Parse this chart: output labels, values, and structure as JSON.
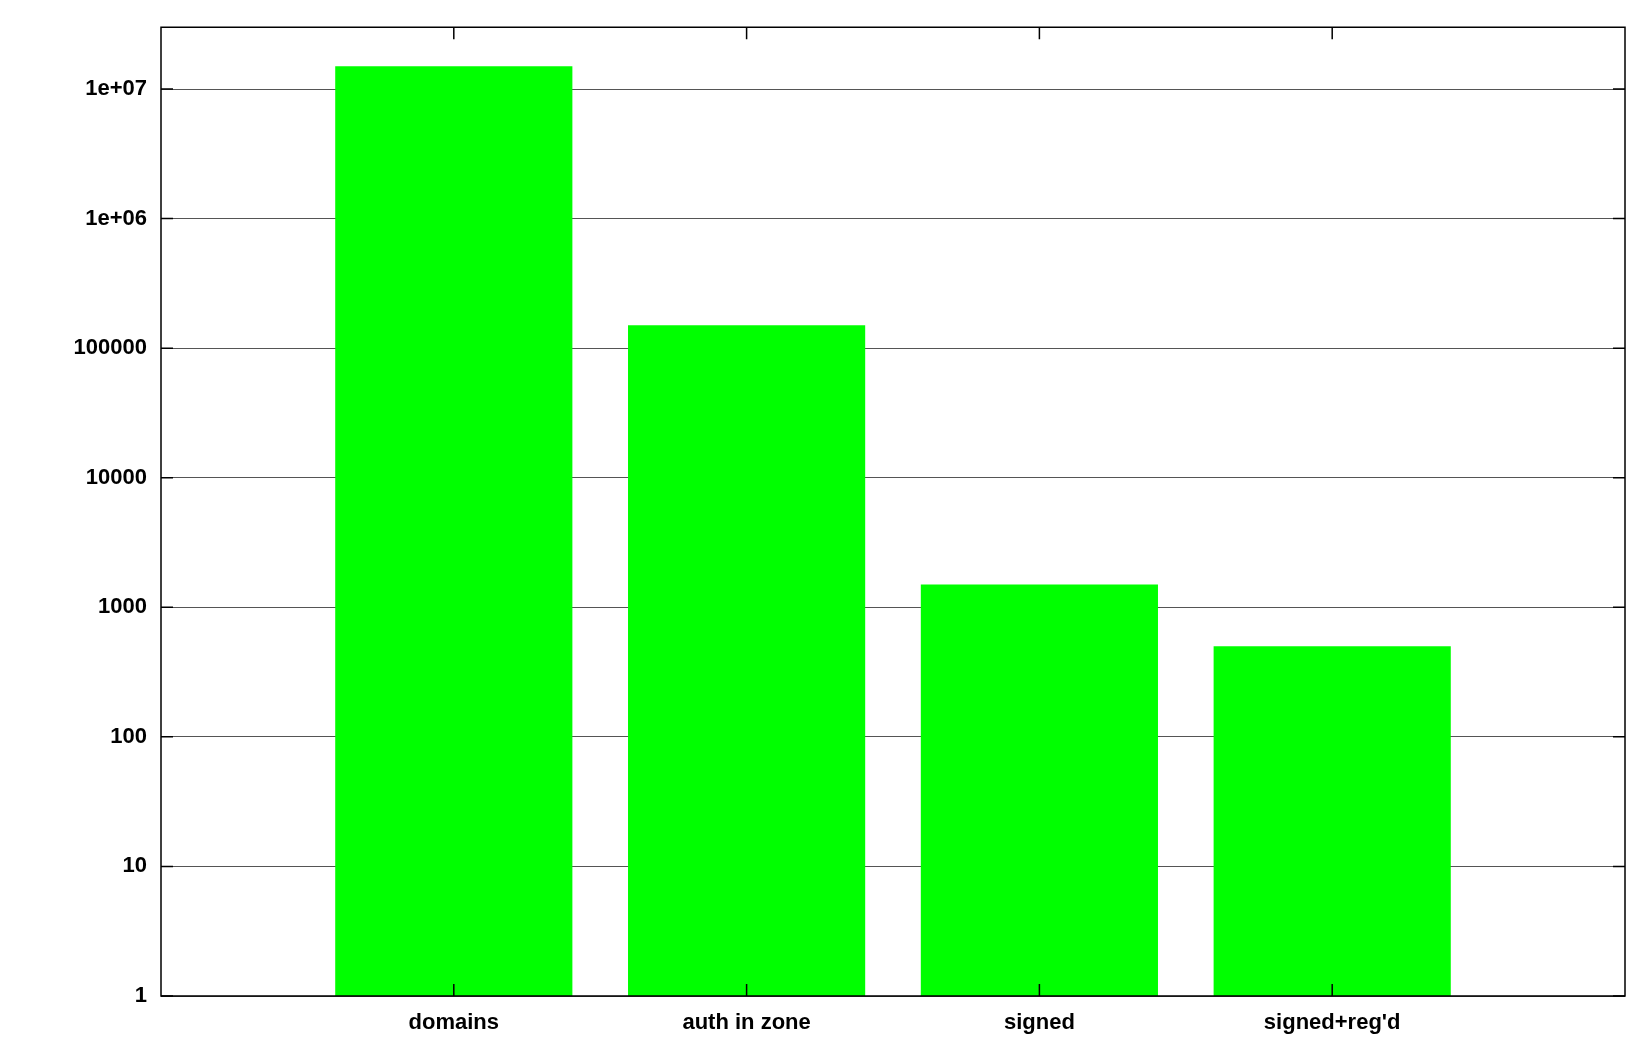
{
  "chart_data": {
    "type": "bar",
    "categories": [
      "domains",
      "auth in zone",
      "signed",
      "signed+reg'd"
    ],
    "values": [
      15000000,
      150000,
      1500,
      500
    ],
    "color": "#00ff00",
    "log": true,
    "ylim": [
      1,
      30000000
    ],
    "yticks": [
      1,
      10,
      100,
      1000,
      10000,
      100000,
      {
        "value": 1000000,
        "label": "1e+06"
      },
      {
        "value": 10000000,
        "label": "1e+07"
      }
    ],
    "grid": "y",
    "legend": false
  }
}
